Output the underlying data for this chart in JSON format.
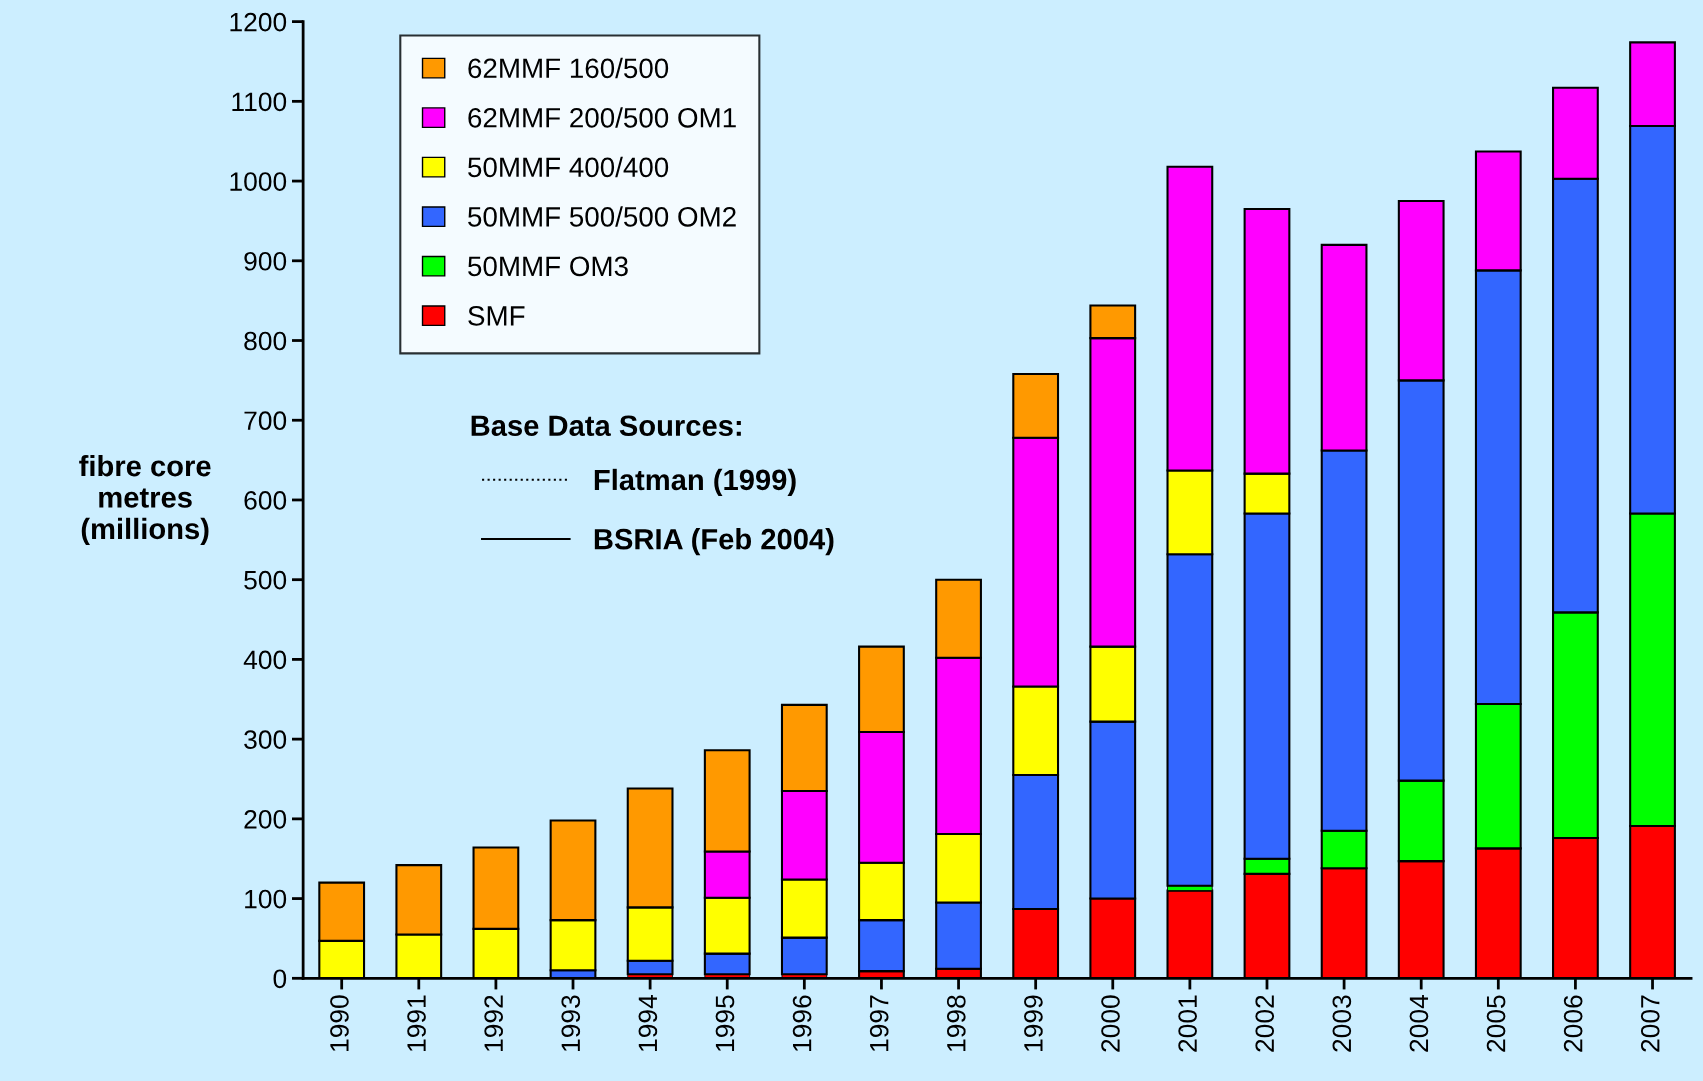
{
  "chart_data": {
    "type": "bar",
    "stacked": true,
    "ylabel": "fibre core\nmetres\n(millions)",
    "categories": [
      "1990",
      "1991",
      "1992",
      "1993",
      "1994",
      "1995",
      "1996",
      "1997",
      "1998",
      "1999",
      "2000",
      "2001",
      "2002",
      "2003",
      "2004",
      "2005",
      "2006",
      "2007"
    ],
    "series": [
      {
        "name": "SMF",
        "color": "#ff0000",
        "values": [
          0,
          0,
          0,
          null,
          5,
          5,
          5,
          9,
          12,
          87,
          100,
          110,
          131,
          138,
          147,
          163,
          176,
          191
        ]
      },
      {
        "name": "50MMF OM3",
        "color": "#00ff00",
        "values": [
          0,
          0,
          0,
          0,
          0,
          0,
          0,
          0,
          0,
          0,
          0,
          6,
          19,
          47,
          101,
          181,
          283,
          392
        ]
      },
      {
        "name": "50MMF 500/500 OM2",
        "color": "#3366ff",
        "values": [
          0,
          0,
          0,
          10,
          17,
          26,
          46,
          64,
          83,
          168,
          222,
          416,
          433,
          477,
          502,
          544,
          544,
          486
        ]
      },
      {
        "name": "50MMF 400/400",
        "color": "#ffff00",
        "values": [
          47,
          55,
          62,
          63,
          67,
          70,
          73,
          72,
          86,
          111,
          94,
          105,
          50,
          0,
          0,
          0,
          0,
          0
        ]
      },
      {
        "name": "62MMF 200/500 OM1",
        "color": "#ff00ff",
        "values": [
          0,
          0,
          0,
          0,
          0,
          58,
          111,
          164,
          221,
          312,
          387,
          381,
          332,
          258,
          225,
          149,
          114,
          105
        ]
      },
      {
        "name": "62MMF 160/500",
        "color": "#ff9900",
        "values": [
          73,
          87,
          102,
          125,
          149,
          127,
          108,
          107,
          98,
          80,
          41,
          0,
          0,
          0,
          0,
          0,
          0,
          0
        ]
      }
    ],
    "ylim": [
      0,
      1200
    ],
    "yticks": [
      0,
      100,
      200,
      300,
      400,
      500,
      600,
      700,
      800,
      900,
      1000,
      1100,
      1200
    ],
    "grid": false,
    "legend": "top left",
    "annotations": [
      "Base Data Sources:",
      "Flatman (1999)",
      "BSRIA (Feb 2004)"
    ]
  }
}
